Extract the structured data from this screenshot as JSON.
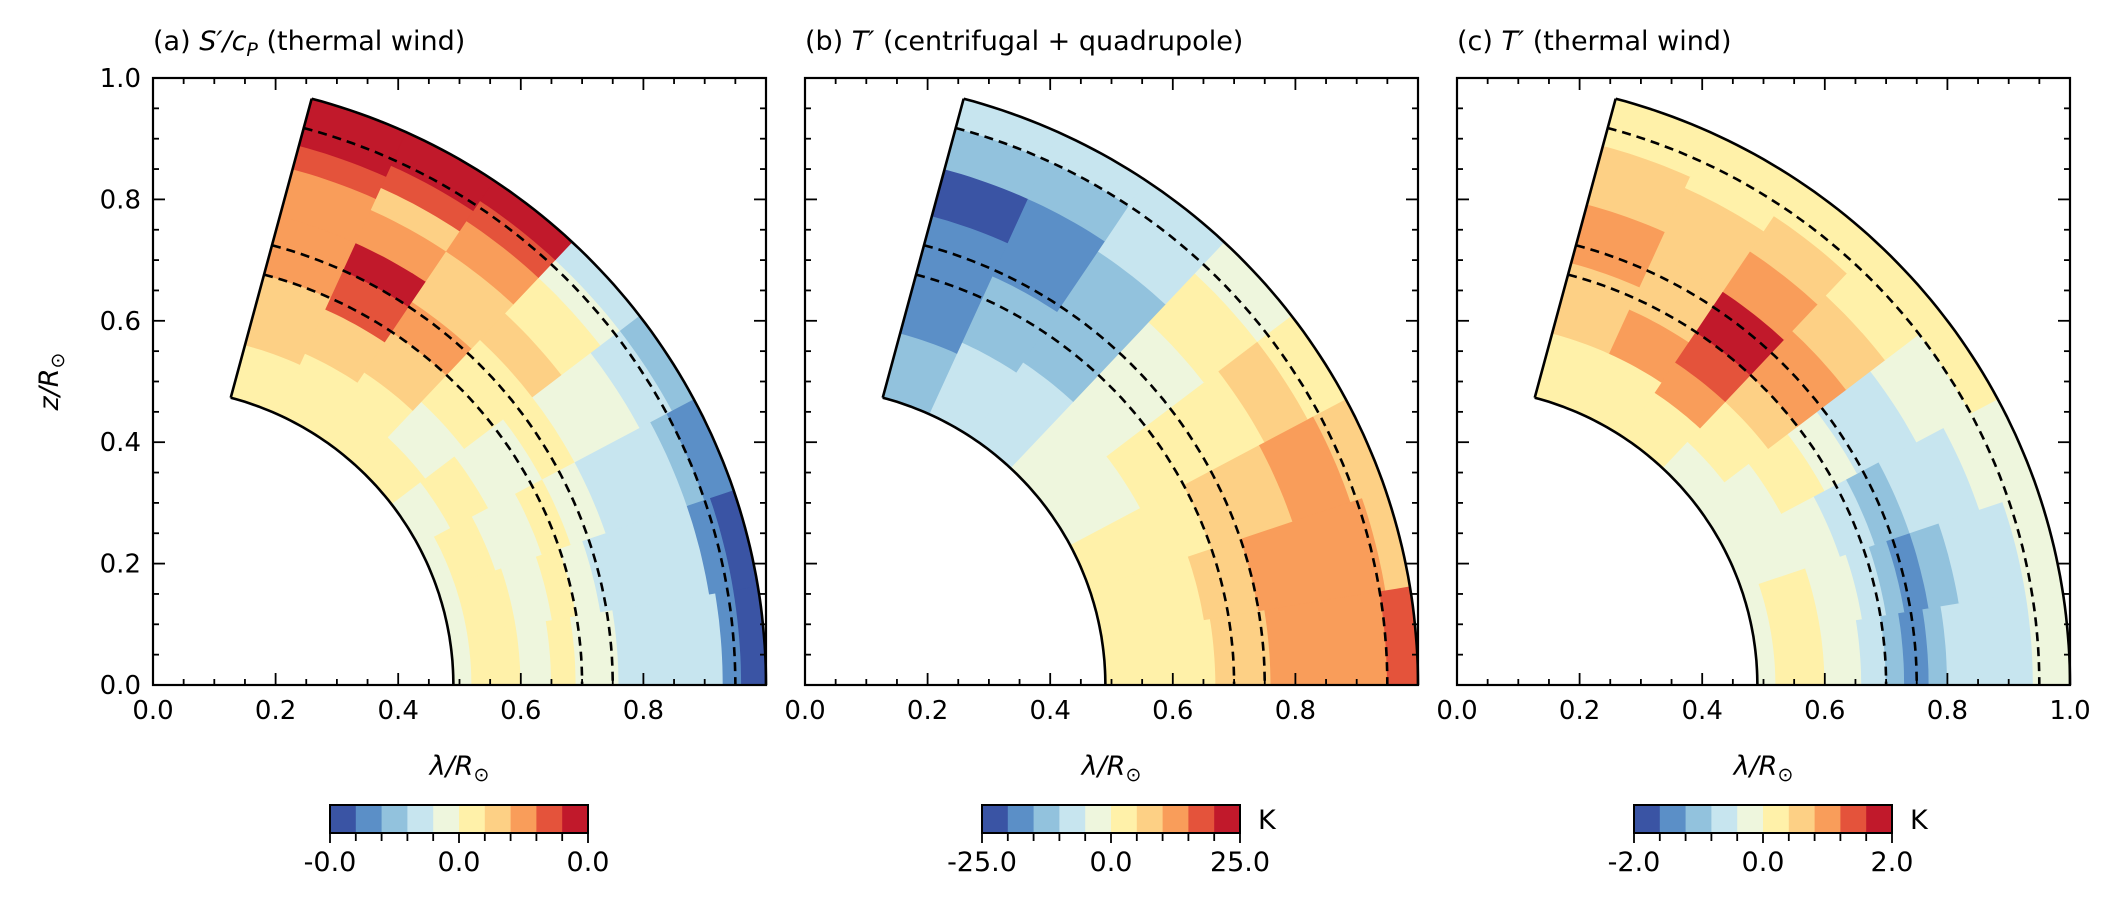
{
  "chart_data": [
    {
      "type": "heatmap",
      "panel": "a",
      "title_prefix": "(a) ",
      "title_sym": "S′/c",
      "title_sub": "P",
      "title_suffix": " (thermal wind)",
      "xlabel_sym": "λ/R",
      "xlabel_sub": "⊙",
      "ylabel_sym": "z/R",
      "ylabel_sub": "⊙",
      "xlim": [
        0,
        1.0
      ],
      "ylim": [
        0,
        1.0
      ],
      "x_ticks": [
        "0.0",
        "0.2",
        "0.4",
        "0.6",
        "0.8"
      ],
      "y_ticks": [
        "0.0",
        "0.2",
        "0.4",
        "0.6",
        "0.8",
        "1.0"
      ],
      "inner_radius": 0.49,
      "outer_radius": 1.0,
      "colatitude_min_deg": 15,
      "dashed_radii": [
        0.7,
        0.75,
        0.95
      ],
      "colorbar": {
        "min_label": "-0.0",
        "mid_label": "0.0",
        "max_label": "0.0",
        "unit": ""
      },
      "field": [
        [
          {
            "r": 0.49,
            "v": 0
          },
          {
            "r": 0.52,
            "v": 1
          },
          {
            "r": 0.6,
            "v": 0
          },
          {
            "r": 0.65,
            "v": 1
          },
          {
            "r": 0.69,
            "v": 0
          },
          {
            "r": 0.76,
            "v": -1
          },
          {
            "r": 0.93,
            "v": -3
          },
          {
            "r": 0.96,
            "v": -4
          }
        ],
        [
          {
            "r": 0.49,
            "v": 0
          },
          {
            "r": 0.52,
            "v": 1
          },
          {
            "r": 0.6,
            "v": 0
          },
          {
            "r": 0.66,
            "v": 1
          },
          {
            "r": 0.7,
            "v": 0
          },
          {
            "r": 0.74,
            "v": -1
          },
          {
            "r": 0.92,
            "v": -3
          },
          {
            "r": 0.96,
            "v": -4
          }
        ],
        [
          {
            "r": 0.49,
            "v": 0
          },
          {
            "r": 0.52,
            "v": 1
          },
          {
            "r": 0.59,
            "v": 0
          },
          {
            "r": 0.67,
            "v": 1
          },
          {
            "r": 0.72,
            "v": 0
          },
          {
            "r": 0.78,
            "v": -1
          },
          {
            "r": 0.92,
            "v": -2
          },
          {
            "r": 0.95,
            "v": -3
          }
        ],
        [
          {
            "r": 0.49,
            "v": 0
          },
          {
            "r": 0.55,
            "v": 1
          },
          {
            "r": 0.62,
            "v": 0
          },
          {
            "r": 0.72,
            "v": 1
          },
          {
            "r": 0.78,
            "v": 0
          },
          {
            "r": 0.9,
            "v": -1
          },
          {
            "r": 0.96,
            "v": -2
          }
        ],
        [
          {
            "r": 0.49,
            "v": 1
          },
          {
            "r": 0.56,
            "v": 0
          },
          {
            "r": 0.64,
            "v": 1
          },
          {
            "r": 0.78,
            "v": 2
          },
          {
            "r": 0.84,
            "v": 1
          },
          {
            "r": 0.92,
            "v": 0
          },
          {
            "r": 0.96,
            "v": -1
          }
        ],
        [
          {
            "r": 0.49,
            "v": 1
          },
          {
            "r": 0.62,
            "v": 2
          },
          {
            "r": 0.7,
            "v": 3
          },
          {
            "r": 0.76,
            "v": 2
          },
          {
            "r": 0.86,
            "v": 3
          },
          {
            "r": 0.92,
            "v": 4
          },
          {
            "r": 0.96,
            "v": 5
          }
        ],
        [
          {
            "r": 0.49,
            "v": 1
          },
          {
            "r": 0.6,
            "v": 2
          },
          {
            "r": 0.68,
            "v": 4
          },
          {
            "r": 0.75,
            "v": 5
          },
          {
            "r": 0.8,
            "v": 3
          },
          {
            "r": 0.86,
            "v": 2
          },
          {
            "r": 0.9,
            "v": 4
          },
          {
            "r": 0.94,
            "v": 5
          }
        ],
        [
          {
            "r": 0.49,
            "v": 1
          },
          {
            "r": 0.58,
            "v": 2
          },
          {
            "r": 0.7,
            "v": 3
          },
          {
            "r": 0.8,
            "v": 3
          },
          {
            "r": 0.88,
            "v": 4
          },
          {
            "r": 0.92,
            "v": 5
          }
        ]
      ]
    },
    {
      "type": "heatmap",
      "panel": "b",
      "title_prefix": "(b) ",
      "title_sym": "T′",
      "title_sub": "",
      "title_suffix": " (centrifugal + quadrupole)",
      "xlabel_sym": "λ/R",
      "xlabel_sub": "⊙",
      "ylabel_sym": "",
      "ylabel_sub": "",
      "xlim": [
        0,
        1.0
      ],
      "ylim": [
        0,
        1.0
      ],
      "x_ticks": [
        "0.0",
        "0.2",
        "0.4",
        "0.6",
        "0.8"
      ],
      "y_ticks": [],
      "inner_radius": 0.49,
      "outer_radius": 1.0,
      "colatitude_min_deg": 15,
      "dashed_radii": [
        0.7,
        0.75,
        0.95
      ],
      "colorbar": {
        "min_label": "-25.0",
        "mid_label": "0.0",
        "max_label": "25.0",
        "unit": "K"
      },
      "field": [
        [
          {
            "r": 0.49,
            "v": 1
          },
          {
            "r": 0.67,
            "v": 2
          },
          {
            "r": 0.76,
            "v": 3
          },
          {
            "r": 0.95,
            "v": 4
          }
        ],
        [
          {
            "r": 0.49,
            "v": 1
          },
          {
            "r": 0.66,
            "v": 2
          },
          {
            "r": 0.75,
            "v": 3
          },
          {
            "r": 0.96,
            "v": 2
          }
        ],
        [
          {
            "r": 0.49,
            "v": 1
          },
          {
            "r": 0.7,
            "v": 2
          },
          {
            "r": 0.84,
            "v": 3
          },
          {
            "r": 0.94,
            "v": 2
          }
        ],
        [
          {
            "r": 0.49,
            "v": 0
          },
          {
            "r": 0.62,
            "v": 1
          },
          {
            "r": 0.85,
            "v": 2
          },
          {
            "r": 0.93,
            "v": 1
          }
        ],
        [
          {
            "r": 0.49,
            "v": 0
          },
          {
            "r": 0.82,
            "v": 1
          },
          {
            "r": 0.93,
            "v": 0
          }
        ],
        [
          {
            "r": 0.49,
            "v": -1
          },
          {
            "r": 0.64,
            "v": -2
          },
          {
            "r": 0.86,
            "v": -1
          }
        ],
        [
          {
            "r": 0.49,
            "v": -1
          },
          {
            "r": 0.62,
            "v": -2
          },
          {
            "r": 0.74,
            "v": -3
          },
          {
            "r": 0.88,
            "v": -2
          },
          {
            "r": 0.95,
            "v": -1
          }
        ],
        [
          {
            "r": 0.49,
            "v": -2
          },
          {
            "r": 0.6,
            "v": -3
          },
          {
            "r": 0.8,
            "v": -4
          },
          {
            "r": 0.88,
            "v": -2
          },
          {
            "r": 0.95,
            "v": -1
          }
        ]
      ]
    },
    {
      "type": "heatmap",
      "panel": "c",
      "title_prefix": "(c) ",
      "title_sym": "T′",
      "title_sub": "",
      "title_suffix": " (thermal wind)",
      "xlabel_sym": "λ/R",
      "xlabel_sub": "⊙",
      "ylabel_sym": "",
      "ylabel_sub": "",
      "xlim": [
        0,
        1.0
      ],
      "ylim": [
        0,
        1.0
      ],
      "x_ticks": [
        "0.0",
        "0.2",
        "0.4",
        "0.6",
        "0.8",
        "1.0"
      ],
      "y_ticks": [],
      "inner_radius": 0.49,
      "outer_radius": 1.0,
      "colatitude_min_deg": 15,
      "dashed_radii": [
        0.7,
        0.75,
        0.95
      ],
      "colorbar": {
        "min_label": "-2.0",
        "mid_label": "0.0",
        "max_label": "2.0",
        "unit": "K"
      },
      "field": [
        [
          {
            "r": 0.49,
            "v": 0
          },
          {
            "r": 0.52,
            "v": 1
          },
          {
            "r": 0.6,
            "v": 0
          },
          {
            "r": 0.66,
            "v": -1
          },
          {
            "r": 0.7,
            "v": -2
          },
          {
            "r": 0.73,
            "v": -3
          },
          {
            "r": 0.77,
            "v": -2
          },
          {
            "r": 0.8,
            "v": -1
          },
          {
            "r": 0.94,
            "v": 0
          }
        ],
        [
          {
            "r": 0.49,
            "v": 0
          },
          {
            "r": 0.52,
            "v": 1
          },
          {
            "r": 0.6,
            "v": 0
          },
          {
            "r": 0.67,
            "v": -1
          },
          {
            "r": 0.71,
            "v": -2
          },
          {
            "r": 0.74,
            "v": -3
          },
          {
            "r": 0.78,
            "v": -2
          },
          {
            "r": 0.83,
            "v": -1
          },
          {
            "r": 0.94,
            "v": 0
          }
        ],
        [
          {
            "r": 0.49,
            "v": 0
          },
          {
            "r": 0.56,
            "v": 0
          },
          {
            "r": 0.66,
            "v": -1
          },
          {
            "r": 0.72,
            "v": -2
          },
          {
            "r": 0.78,
            "v": -1
          },
          {
            "r": 0.9,
            "v": 0
          }
        ],
        [
          {
            "r": 0.49,
            "v": 0
          },
          {
            "r": 0.6,
            "v": 1
          },
          {
            "r": 0.68,
            "v": 0
          },
          {
            "r": 0.74,
            "v": -1
          },
          {
            "r": 0.85,
            "v": 0
          },
          {
            "r": 0.95,
            "v": 1
          }
        ],
        [
          {
            "r": 0.49,
            "v": 0
          },
          {
            "r": 0.55,
            "v": 1
          },
          {
            "r": 0.64,
            "v": 2
          },
          {
            "r": 0.7,
            "v": 3
          },
          {
            "r": 0.8,
            "v": 2
          },
          {
            "r": 0.88,
            "v": 1
          }
        ],
        [
          {
            "r": 0.49,
            "v": 1
          },
          {
            "r": 0.58,
            "v": 3
          },
          {
            "r": 0.64,
            "v": 4
          },
          {
            "r": 0.7,
            "v": 5
          },
          {
            "r": 0.78,
            "v": 3
          },
          {
            "r": 0.86,
            "v": 2
          },
          {
            "r": 0.93,
            "v": 1
          }
        ],
        [
          {
            "r": 0.49,
            "v": 1
          },
          {
            "r": 0.6,
            "v": 3
          },
          {
            "r": 0.68,
            "v": 2
          },
          {
            "r": 0.78,
            "v": 2
          },
          {
            "r": 0.9,
            "v": 1
          }
        ],
        [
          {
            "r": 0.49,
            "v": 1
          },
          {
            "r": 0.6,
            "v": 2
          },
          {
            "r": 0.72,
            "v": 3
          },
          {
            "r": 0.82,
            "v": 2
          },
          {
            "r": 0.92,
            "v": 1
          }
        ]
      ]
    }
  ],
  "palette": [
    "#3a54a4",
    "#5b8fc7",
    "#92c2dd",
    "#c7e5ef",
    "#eef6dd",
    "#fff1a9",
    "#fdd085",
    "#f99d5a",
    "#e4533b",
    "#c1192b"
  ]
}
